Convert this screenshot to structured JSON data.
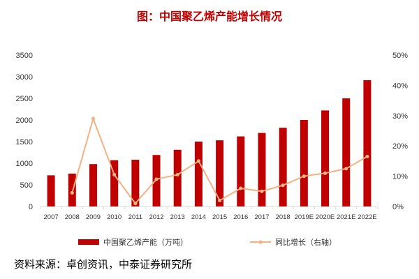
{
  "title": "图：中国聚乙烯产能增长情况",
  "source": "资料来源：卓创资讯，中泰证券研究所",
  "colors": {
    "bar": "#c00000",
    "line": "#f4b183",
    "title": "#c00000",
    "axis": "#d9d9d9"
  },
  "chart_data": {
    "type": "bar",
    "title": "图：中国聚乙烯产能增长情况",
    "categories": [
      "2007",
      "2008",
      "2009",
      "2010",
      "2011",
      "2012",
      "2013",
      "2014",
      "2015",
      "2016",
      "2017",
      "2018",
      "2019E",
      "2020E",
      "2021E",
      "2022E"
    ],
    "series": [
      {
        "name": "中国聚乙烯产能（万吨）",
        "type": "bar",
        "axis": "left",
        "values": [
          720,
          760,
          980,
          1070,
          1080,
          1190,
          1310,
          1500,
          1530,
          1620,
          1700,
          1820,
          2000,
          2220,
          2500,
          2920
        ]
      },
      {
        "name": "同比增长（右轴）",
        "type": "line",
        "axis": "right",
        "values": [
          null,
          0.045,
          0.29,
          0.105,
          0.01,
          0.09,
          0.105,
          0.15,
          0.02,
          0.06,
          0.05,
          0.07,
          0.1,
          0.11,
          0.125,
          0.165
        ]
      }
    ],
    "left_axis": {
      "min": 0,
      "max": 3500,
      "step": 500,
      "ticks": [
        "0",
        "500",
        "1000",
        "1500",
        "2000",
        "2500",
        "3000",
        "3500"
      ]
    },
    "right_axis": {
      "min": 0,
      "max": 0.5,
      "step": 0.1,
      "ticks": [
        "0%",
        "10%",
        "20%",
        "30%",
        "40%",
        "50%"
      ]
    },
    "legend": [
      {
        "label": "中国聚乙烯产能（万吨）",
        "kind": "bar"
      },
      {
        "label": "同比增长（右轴）",
        "kind": "line"
      }
    ],
    "legend_position": "bottom",
    "grid": false
  }
}
